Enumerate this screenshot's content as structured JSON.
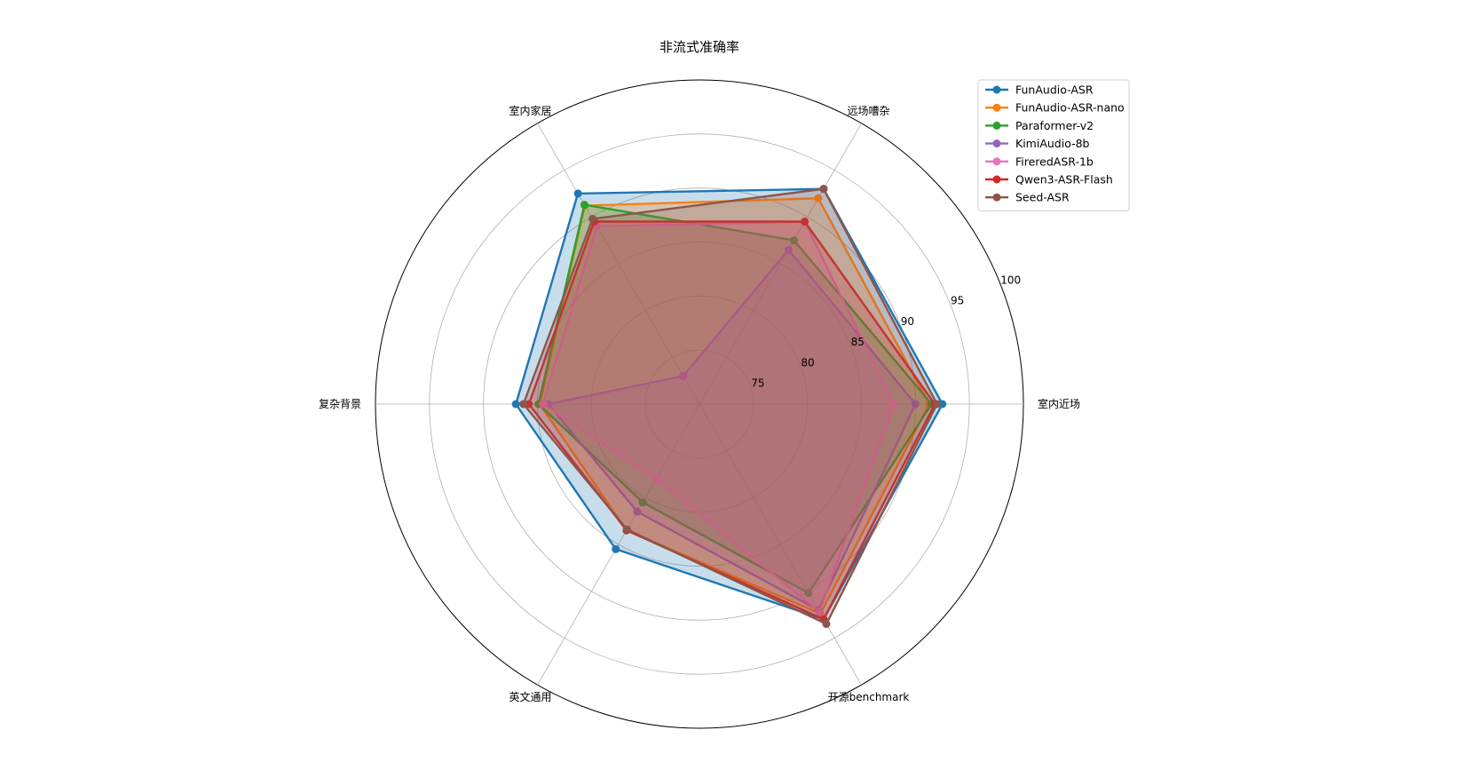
{
  "chart_data": {
    "type": "radar",
    "title": "非流式准确率",
    "axes": [
      "室内近场",
      "远场嘈杂",
      "室内家居",
      "复杂背景",
      "英文通用",
      "开源benchmark"
    ],
    "rlim": [
      70,
      100
    ],
    "rticks": [
      75,
      80,
      85,
      90,
      95,
      100
    ],
    "grid": true,
    "legend_position": "top-right",
    "series": [
      {
        "name": "FunAudio-ASR",
        "color": "#1f77b4",
        "filled": true,
        "values": [
          92.5,
          93.0,
          92.5,
          87.0,
          85.5,
          93.0
        ]
      },
      {
        "name": "FunAudio-ASR-nano",
        "color": "#ff7f0e",
        "filled": true,
        "values": [
          91.3,
          92.0,
          91.2,
          84.8,
          83.5,
          92.4
        ]
      },
      {
        "name": "Paraformer-v2",
        "color": "#2ca02c",
        "filled": true,
        "values": [
          91.5,
          87.5,
          91.3,
          84.9,
          80.5,
          90.2
        ]
      },
      {
        "name": "KimiAudio-8b",
        "color": "#9467bd",
        "filled": true,
        "values": [
          90.0,
          86.5,
          73.0,
          84.0,
          81.5,
          92.0
        ]
      },
      {
        "name": "FireredASR-1b",
        "color": "#e377c2",
        "filled": true,
        "values": [
          88.0,
          89.5,
          89.0,
          84.5,
          78.0,
          92.2
        ]
      },
      {
        "name": "Qwen3-ASR-Flash",
        "color": "#d62728",
        "filled": true,
        "values": [
          91.8,
          89.5,
          89.5,
          85.8,
          83.5,
          93.0
        ]
      },
      {
        "name": "Seed-ASR",
        "color": "#8c564b",
        "filled": true,
        "values": [
          92.0,
          93.0,
          89.8,
          86.3,
          83.4,
          93.5
        ]
      }
    ]
  }
}
